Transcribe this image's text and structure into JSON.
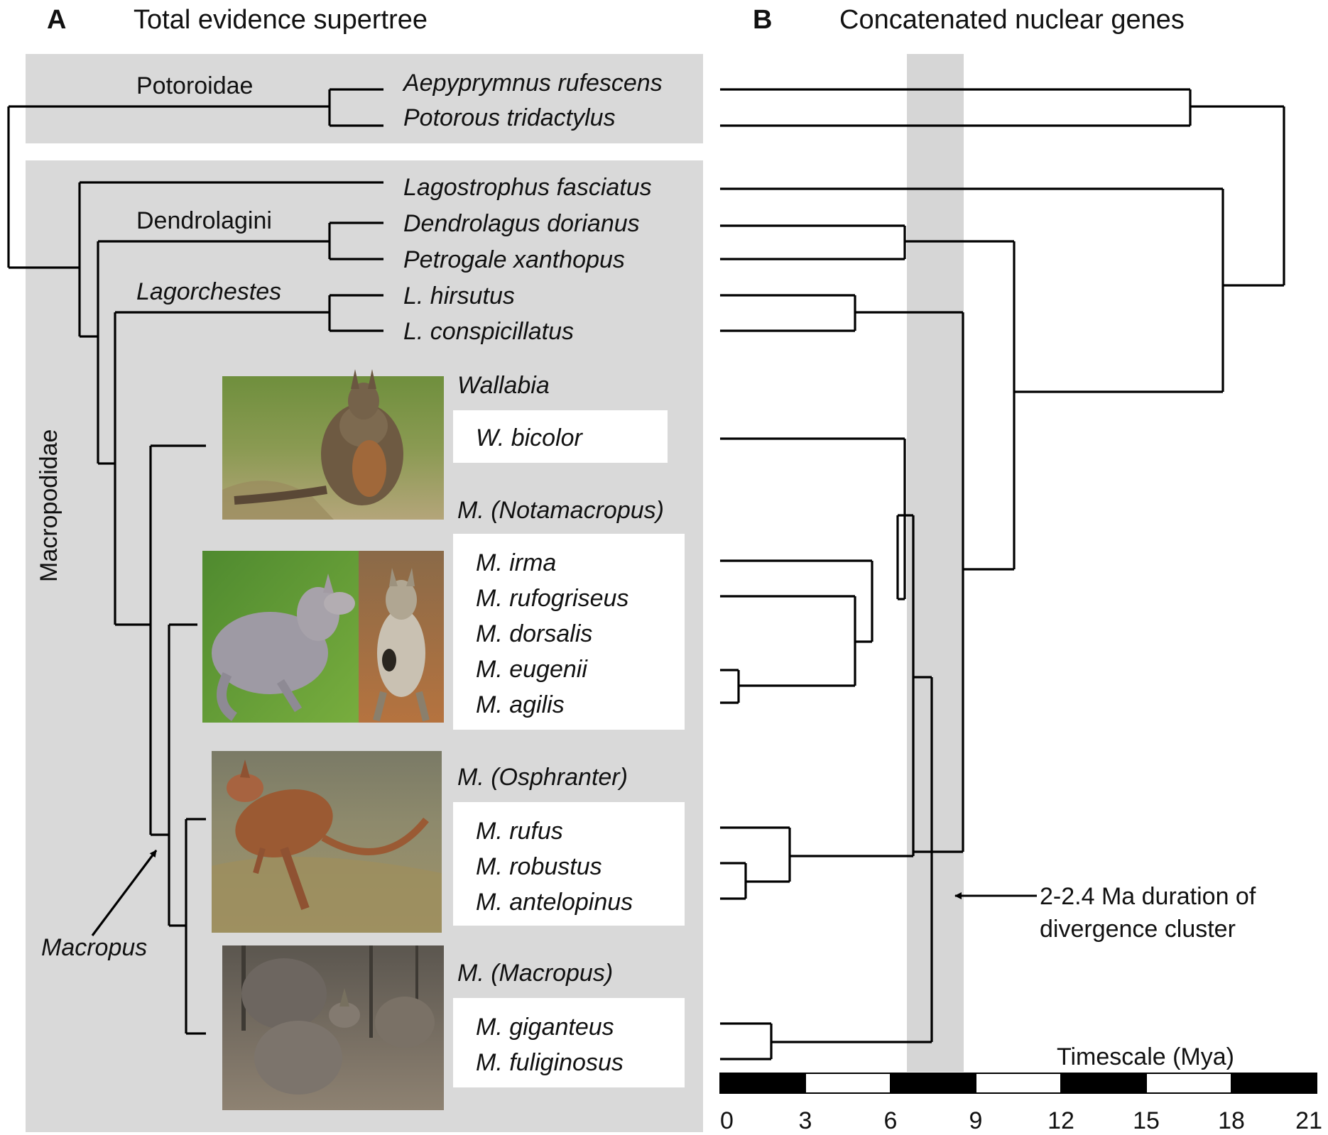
{
  "panel_a": {
    "letter": "A",
    "title": "Total evidence supertree",
    "family_labels": {
      "potoroidae": "Potoroidae",
      "macropodidae": "Macropodidae",
      "dendrolagini": "Dendrolagini",
      "lagorchestes": "Lagorchestes",
      "macropus": "Macropus"
    },
    "taxa": {
      "aepyprymnus": "Aepyprymnus rufescens",
      "potorous": "Potorous tridactylus",
      "lagostrophus": "Lagostrophus fasciatus",
      "dendrolagus": "Dendrolagus dorianus",
      "petrogale": "Petrogale xanthopus",
      "l_hirsutus": "L. hirsutus",
      "l_conspicillatus": "L. conspicillatus"
    },
    "groups": {
      "wallabia": {
        "title": "Wallabia",
        "species": [
          "W. bicolor"
        ]
      },
      "notamacropus": {
        "title": "M. (Notamacropus)",
        "species": [
          "M. irma",
          "M. rufogriseus",
          "M. dorsalis",
          "M. eugenii",
          "M. agilis"
        ]
      },
      "osphranter": {
        "title": "M. (Osphranter)",
        "species": [
          "M. rufus",
          "M. robustus",
          "M. antelopinus"
        ]
      },
      "macropus": {
        "title": "M. (Macropus)",
        "species": [
          "M. giganteus",
          "M. fuliginosus"
        ]
      }
    },
    "photos": {
      "wallabia": "swamp wallaby photo",
      "notamacropus_1": "red-necked wallaby photo",
      "notamacropus_2": "wallaby standing photo",
      "osphranter": "red kangaroo hopping photo",
      "macropus": "grey kangaroos photo"
    }
  },
  "panel_b": {
    "letter": "B",
    "title": "Concatenated nuclear genes",
    "annotation": [
      "2-2.4 Ma duration of",
      "divergence cluster"
    ],
    "timescale": {
      "label": "Timescale (Mya)",
      "ticks": [
        "0",
        "3",
        "6",
        "9",
        "12",
        "15",
        "18",
        "21"
      ],
      "unit_max": 21
    }
  },
  "colors": {
    "panel_gray": "#d9d9d9",
    "band_gray": "#d6d6d6",
    "branch": "#000000"
  }
}
